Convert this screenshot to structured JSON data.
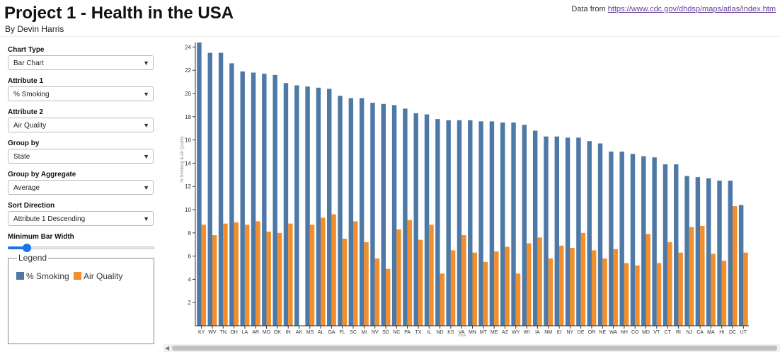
{
  "header": {
    "title": "Project 1 - Health in the USA",
    "subtitle": "By Devin Harris",
    "source_prefix": "Data from ",
    "source_link": "https://www.cdc.gov/dhdsp/maps/atlas/index.htm"
  },
  "controls": {
    "chart_type": {
      "label": "Chart Type",
      "value": "Bar Chart"
    },
    "attribute1": {
      "label": "Attribute 1",
      "value": "% Smoking"
    },
    "attribute2": {
      "label": "Attribute 2",
      "value": "Air Quality"
    },
    "group_by": {
      "label": "Group by",
      "value": "State"
    },
    "group_by_aggregate": {
      "label": "Group by Aggregate",
      "value": "Average"
    },
    "sort_direction": {
      "label": "Sort Direction",
      "value": "Attribute 1 Descending"
    },
    "min_bar_width": {
      "label": "Minimum Bar Width",
      "value_fraction": 0.11
    }
  },
  "legend": {
    "title": "Legend",
    "items": [
      {
        "label": "% Smoking",
        "color": "#4e79a7"
      },
      {
        "label": "Air Quality",
        "color": "#f28e2b"
      }
    ]
  },
  "colors": {
    "series1": "#4e79a7",
    "series2": "#f28e2b"
  },
  "chart_data": {
    "type": "bar",
    "ylabel": "% Smoking & Air Quality",
    "xlabel": "State",
    "ylim": [
      0,
      25
    ],
    "y_ticks": [
      2,
      4,
      6,
      8,
      10,
      12,
      14,
      16,
      18,
      20,
      22,
      24
    ],
    "categories": [
      "KY",
      "WV",
      "TN",
      "OH",
      "LA",
      "AR",
      "MO",
      "OK",
      "IN",
      "AK",
      "MS",
      "AL",
      "GA",
      "FL",
      "SC",
      "MI",
      "NV",
      "SD",
      "NC",
      "PA",
      "TX",
      "IL",
      "ND",
      "KS",
      "VA",
      "MN",
      "MT",
      "ME",
      "AZ",
      "WY",
      "WI",
      "IA",
      "NM",
      "ID",
      "NY",
      "DE",
      "OR",
      "NE",
      "WA",
      "NH",
      "CO",
      "MD",
      "VT",
      "CT",
      "RI",
      "NJ",
      "CA",
      "MA",
      "HI",
      "DC",
      "UT"
    ],
    "series": [
      {
        "name": "% Smoking",
        "values": [
          24.4,
          23.5,
          23.5,
          22.6,
          21.9,
          21.8,
          21.7,
          21.6,
          20.9,
          20.7,
          20.6,
          20.5,
          20.4,
          19.8,
          19.6,
          19.6,
          19.2,
          19.1,
          19.0,
          18.7,
          18.3,
          18.2,
          17.8,
          17.7,
          17.7,
          17.7,
          17.6,
          17.6,
          17.5,
          17.5,
          17.3,
          16.8,
          16.3,
          16.3,
          16.2,
          16.2,
          15.9,
          15.7,
          15.0,
          15.0,
          14.8,
          14.6,
          14.5,
          13.9,
          13.9,
          12.9,
          12.8,
          12.7,
          12.5,
          12.5,
          10.4
        ]
      },
      {
        "name": "Air Quality",
        "values": [
          8.7,
          7.8,
          8.8,
          8.9,
          8.7,
          9.0,
          8.1,
          8.0,
          8.8,
          0,
          8.7,
          9.3,
          9.6,
          7.5,
          9.0,
          7.2,
          5.8,
          4.9,
          8.3,
          9.1,
          7.4,
          8.7,
          4.5,
          6.5,
          7.8,
          6.3,
          5.5,
          6.4,
          6.8,
          4.5,
          7.1,
          7.6,
          5.8,
          6.9,
          6.7,
          8.0,
          6.5,
          5.8,
          6.6,
          5.4,
          5.2,
          7.9,
          5.4,
          7.2,
          6.3,
          8.5,
          8.6,
          6.2,
          5.6,
          10.3,
          6.3
        ]
      }
    ]
  }
}
